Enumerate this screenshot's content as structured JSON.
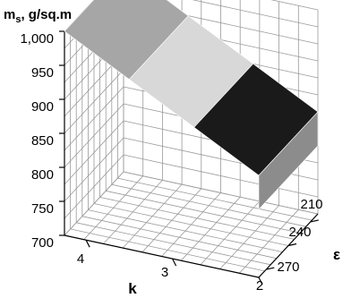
{
  "chart_data": {
    "type": "surface",
    "zlabel": "m",
    "zlabel_sub": "s",
    "zlabel_unit": ", g/sq.m",
    "xlabel": "k",
    "ylabel": "ε",
    "z_ticks": [
      "700",
      "750",
      "800",
      "850",
      "900",
      "950",
      "1,000"
    ],
    "z_values": [
      700,
      750,
      800,
      850,
      900,
      950,
      1000
    ],
    "zlim": [
      700,
      1000
    ],
    "k_ticks": [
      "4",
      "3",
      "2"
    ],
    "k_values": [
      4,
      3,
      2
    ],
    "eps_ticks": [
      "210",
      "240",
      "270"
    ],
    "eps_values": [
      210,
      240,
      270
    ],
    "series": [
      {
        "k": [
          4.25,
          3.5,
          2.75,
          2.0
        ],
        "eps": [
          200,
          280
        ],
        "ms": [
          1000,
          950,
          900,
          850,
          800
        ]
      }
    ],
    "band_fills": [
      "#a6a6a6",
      "#d8d8d8",
      "#1a1a1a",
      "#8c8c8c"
    ],
    "grid": true
  }
}
